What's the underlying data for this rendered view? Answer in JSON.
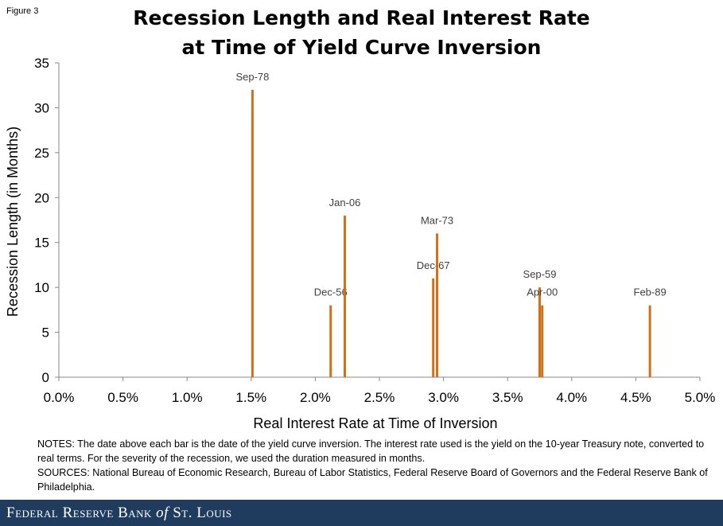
{
  "figure_label": "Figure 3",
  "title_line1": "Recession Length and Real Interest Rate",
  "title_line2": "at Time of Yield Curve Inversion",
  "notes": "NOTES: The date above each bar is the date of the yield curve inversion. The interest rate used is the yield on the 10-year Treasury note, converted to real terms. For the severity of the recession, we used the duration measured in months.",
  "sources": "SOURCES: National Bureau of Economic Research, Bureau of Labor Statistics, Federal Reserve Board of Governors and the Federal Reserve Bank of Philadelphia.",
  "footer": {
    "logo_text": "Federal Reserve Bank of St. Louis",
    "logo_part1": "Federal Reserve Bank",
    "logo_part2": "of",
    "logo_part3": "St. Louis",
    "background_color": "#1f3c5f"
  },
  "chart_data": {
    "type": "bar",
    "xlabel": "Real Interest Rate at Time of Inversion",
    "ylabel": "Recession Length (in Months)",
    "xlim": [
      0.0,
      5.0
    ],
    "ylim": [
      0,
      35
    ],
    "x_ticks": [
      "0.0%",
      "0.5%",
      "1.0%",
      "1.5%",
      "2.0%",
      "2.5%",
      "3.0%",
      "3.5%",
      "4.0%",
      "4.5%",
      "5.0%"
    ],
    "y_ticks": [
      "0",
      "5",
      "10",
      "15",
      "20",
      "25",
      "30",
      "35"
    ],
    "grid": "none",
    "bar_color": "#d46f14",
    "points": [
      {
        "label": "Sep-78",
        "x": 1.51,
        "y": 32
      },
      {
        "label": "Dec-56",
        "x": 2.12,
        "y": 8
      },
      {
        "label": "Jan-06",
        "x": 2.23,
        "y": 18
      },
      {
        "label": "Dec-67",
        "x": 2.92,
        "y": 11
      },
      {
        "label": "Mar-73",
        "x": 2.95,
        "y": 16
      },
      {
        "label": "Sep-59",
        "x": 3.75,
        "y": 10
      },
      {
        "label": "Apr-00",
        "x": 3.77,
        "y": 8
      },
      {
        "label": "Feb-89",
        "x": 4.61,
        "y": 8
      }
    ]
  }
}
